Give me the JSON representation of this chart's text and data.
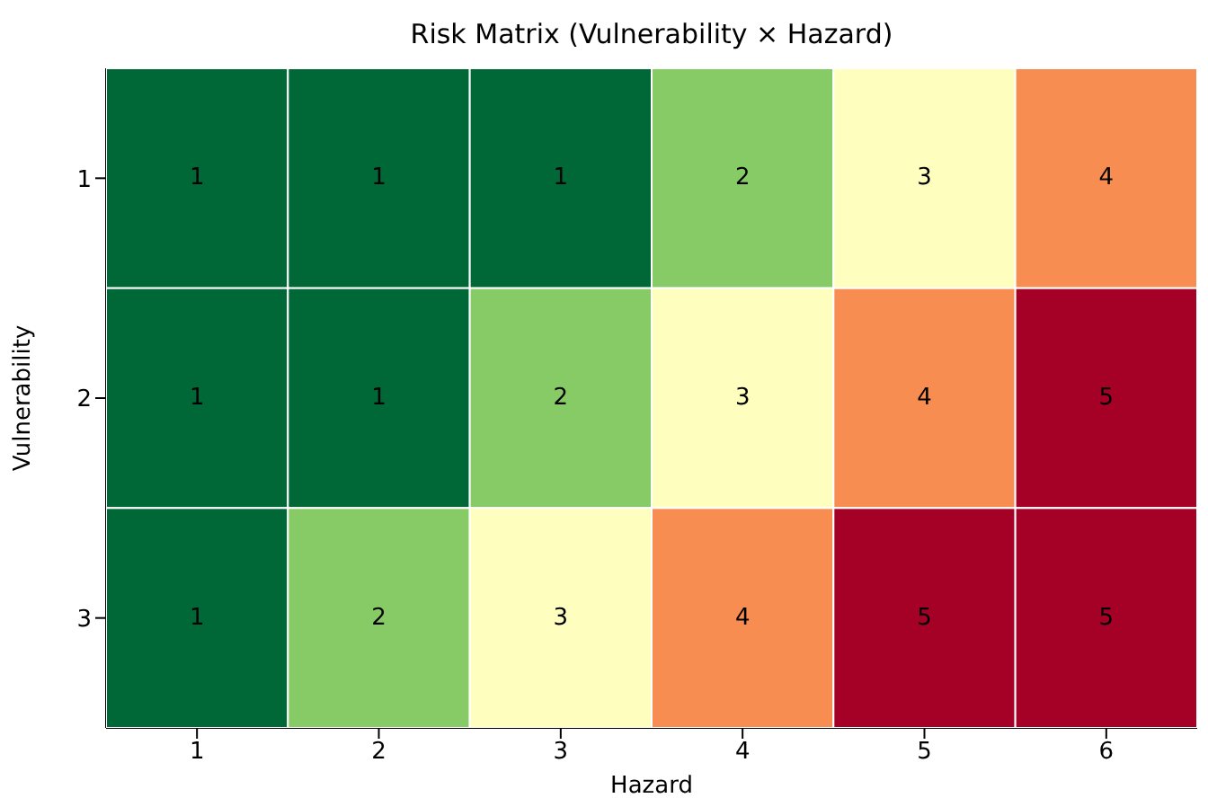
{
  "chart_data": {
    "type": "heatmap",
    "title": "Risk Matrix (Vulnerability × Hazard)",
    "xlabel": "Hazard",
    "ylabel": "Vulnerability",
    "categories": [
      "1",
      "2",
      "3",
      "4",
      "5",
      "6"
    ],
    "y_categories": [
      "1",
      "2",
      "3"
    ],
    "cells": [
      [
        1,
        1,
        1,
        2,
        3,
        4
      ],
      [
        1,
        1,
        2,
        3,
        4,
        5
      ],
      [
        1,
        2,
        3,
        4,
        5,
        5
      ]
    ],
    "colors": [
      "#006837",
      "#86cb66",
      "#feffbe",
      "#f88d52",
      "#a50026"
    ],
    "data_labels": true
  }
}
